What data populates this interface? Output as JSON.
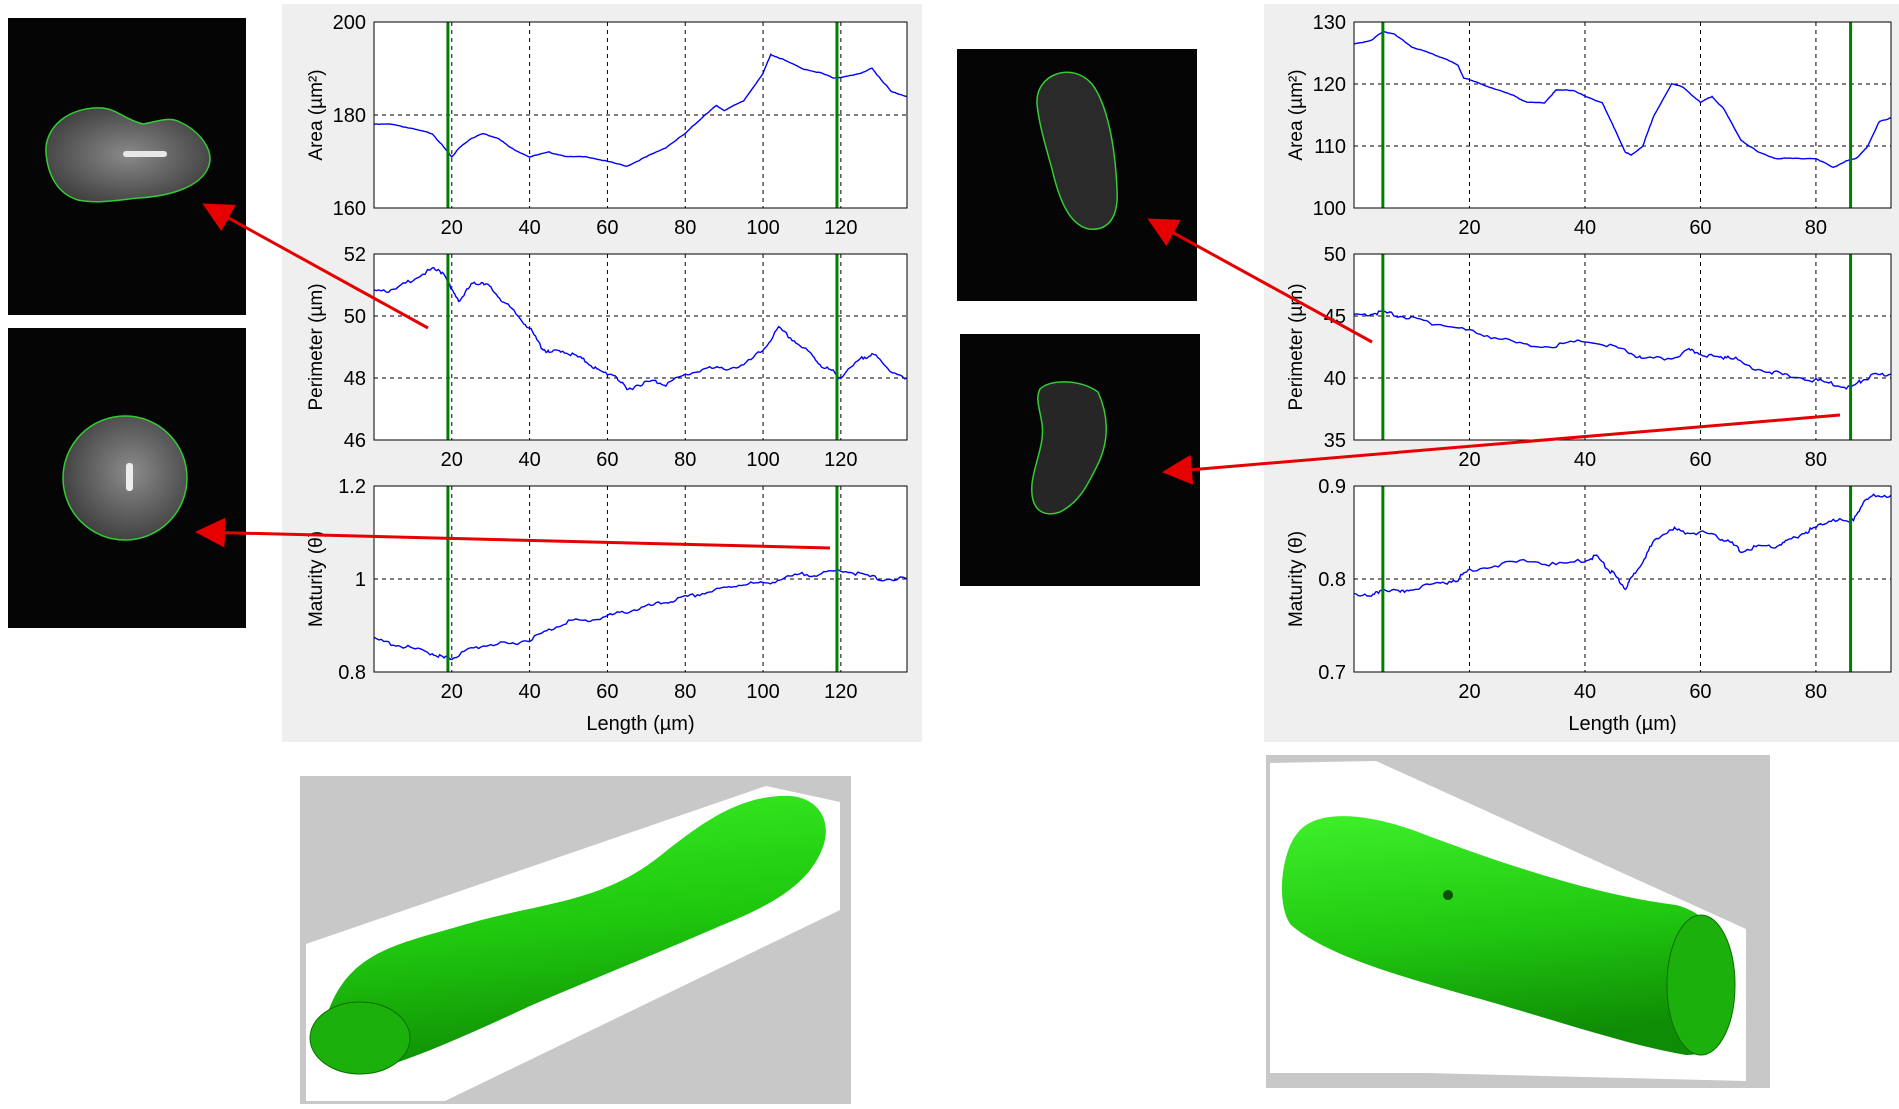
{
  "colors": {
    "trace": "#0000ff",
    "marker": "#008000",
    "arrow": "#e60000",
    "contour": "#33cc33",
    "tube": "#22dd11",
    "panel_bg": "#efefef",
    "render_bg": "#c8c8c8"
  },
  "chart_data": [
    {
      "type": "line",
      "panel": "left-area",
      "ylabel": "Area (µm²)",
      "xlabel": "",
      "xlim": [
        0,
        137
      ],
      "ylim": [
        160,
        200
      ],
      "xticks": [
        "20",
        "40",
        "60",
        "80",
        "100",
        "120"
      ],
      "yticks": [
        "160",
        "180",
        "200"
      ],
      "grid": true,
      "markers_x": [
        19,
        119
      ],
      "series": [
        {
          "x": [
            0,
            5,
            10,
            15,
            18,
            20,
            22,
            25,
            28,
            32,
            35,
            40,
            45,
            50,
            55,
            60,
            65,
            70,
            75,
            80,
            85,
            88,
            90,
            95,
            100,
            102,
            105,
            110,
            115,
            118,
            120,
            125,
            128,
            130,
            133,
            137
          ],
          "values": [
            178,
            178,
            177,
            176,
            173,
            171,
            173,
            175,
            176,
            175,
            173,
            171,
            172,
            171,
            171,
            170,
            169,
            171,
            173,
            176,
            180,
            182,
            181,
            183,
            189,
            193,
            192,
            190,
            189,
            188,
            188,
            189,
            190,
            188,
            185,
            184
          ]
        }
      ]
    },
    {
      "type": "line",
      "panel": "left-perimeter",
      "ylabel": "Perimeter (µm)",
      "xlabel": "",
      "xlim": [
        0,
        137
      ],
      "ylim": [
        46,
        52
      ],
      "xticks": [
        "20",
        "40",
        "60",
        "80",
        "100",
        "120"
      ],
      "yticks": [
        "46",
        "48",
        "50",
        "52"
      ],
      "grid": true,
      "markers_x": [
        19,
        119
      ],
      "series": [
        {
          "x": [
            0,
            5,
            10,
            15,
            18,
            20,
            22,
            25,
            28,
            30,
            33,
            37,
            40,
            43,
            45,
            48,
            52,
            55,
            58,
            62,
            65,
            68,
            72,
            75,
            80,
            85,
            90,
            95,
            100,
            104,
            108,
            112,
            115,
            118,
            120,
            125,
            128,
            132,
            137
          ],
          "values": [
            50.9,
            50.8,
            51.2,
            51.5,
            51.4,
            50.8,
            50.5,
            51.0,
            51.1,
            50.9,
            50.5,
            50.0,
            49.6,
            49.0,
            48.8,
            48.9,
            48.7,
            48.5,
            48.2,
            48.1,
            47.6,
            47.8,
            47.9,
            47.8,
            48.1,
            48.3,
            48.3,
            48.4,
            48.9,
            49.6,
            49.2,
            48.8,
            48.4,
            48.2,
            48.0,
            48.6,
            48.8,
            48.3,
            48.0
          ]
        }
      ]
    },
    {
      "type": "line",
      "panel": "left-maturity",
      "ylabel": "Maturity (θ)",
      "xlabel": "Length (µm)",
      "xlim": [
        0,
        137
      ],
      "ylim": [
        0.8,
        1.2
      ],
      "xticks": [
        "20",
        "40",
        "60",
        "80",
        "100",
        "120"
      ],
      "yticks": [
        "0.8",
        "1",
        "1.2"
      ],
      "grid": true,
      "markers_x": [
        19,
        119
      ],
      "series": [
        {
          "x": [
            0,
            5,
            10,
            15,
            18,
            20,
            25,
            30,
            35,
            40,
            45,
            50,
            55,
            60,
            65,
            70,
            75,
            80,
            85,
            90,
            95,
            100,
            105,
            110,
            115,
            120,
            125,
            130,
            137
          ],
          "values": [
            0.87,
            0.86,
            0.85,
            0.84,
            0.83,
            0.83,
            0.85,
            0.86,
            0.86,
            0.87,
            0.89,
            0.91,
            0.91,
            0.92,
            0.93,
            0.94,
            0.95,
            0.96,
            0.97,
            0.98,
            0.99,
            0.99,
            1.0,
            1.01,
            1.01,
            1.02,
            1.01,
            1.0,
            1.0
          ]
        }
      ]
    },
    {
      "type": "line",
      "panel": "right-area",
      "ylabel": "Area (µm²)",
      "xlabel": "",
      "xlim": [
        0,
        93
      ],
      "ylim": [
        100,
        130
      ],
      "xticks": [
        "20",
        "40",
        "60",
        "80"
      ],
      "yticks": [
        "100",
        "110",
        "120",
        "130"
      ],
      "grid": true,
      "markers_x": [
        5,
        86
      ],
      "series": [
        {
          "x": [
            0,
            3,
            5,
            7,
            10,
            13,
            16,
            18,
            19,
            22,
            25,
            28,
            30,
            33,
            35,
            38,
            40,
            43,
            45,
            47,
            48,
            50,
            52,
            55,
            57,
            60,
            62,
            64,
            67,
            70,
            73,
            76,
            80,
            83,
            85,
            87,
            89,
            91,
            93
          ],
          "values": [
            126.5,
            127,
            128.5,
            128,
            126,
            125,
            124,
            123,
            121,
            120,
            119,
            118,
            117,
            117,
            119,
            119,
            118,
            117,
            113,
            109,
            108.5,
            110,
            115,
            120,
            119.5,
            117,
            118,
            116,
            111,
            109,
            108,
            108,
            108,
            106.5,
            107.5,
            108,
            110,
            114,
            114.5
          ]
        }
      ]
    },
    {
      "type": "line",
      "panel": "right-perimeter",
      "ylabel": "Perimeter (µm)",
      "xlabel": "",
      "xlim": [
        0,
        93
      ],
      "ylim": [
        35,
        50
      ],
      "xticks": [
        "20",
        "40",
        "60",
        "80"
      ],
      "yticks": [
        "35",
        "40",
        "45",
        "50"
      ],
      "grid": true,
      "markers_x": [
        5,
        86
      ],
      "series": [
        {
          "x": [
            0,
            3,
            5,
            8,
            12,
            15,
            20,
            25,
            30,
            35,
            40,
            45,
            48,
            50,
            55,
            58,
            60,
            63,
            65,
            68,
            72,
            75,
            80,
            83,
            86,
            88,
            90,
            93
          ],
          "values": [
            45,
            45.2,
            45.3,
            45,
            44.6,
            44.3,
            43.8,
            43.2,
            42.6,
            42.6,
            43,
            42.5,
            42,
            41.5,
            41.6,
            42.2,
            42,
            41.6,
            41.8,
            41,
            40.5,
            40.2,
            39.8,
            39.5,
            39.2,
            39.8,
            40.2,
            40.3
          ]
        }
      ]
    },
    {
      "type": "line",
      "panel": "right-maturity",
      "ylabel": "Maturity (θ)",
      "xlabel": "Length (µm)",
      "xlim": [
        0,
        93
      ],
      "ylim": [
        0.7,
        0.9
      ],
      "xticks": [
        "20",
        "40",
        "60",
        "80"
      ],
      "yticks": [
        "0.7",
        "0.8",
        "0.9"
      ],
      "grid": true,
      "markers_x": [
        5,
        86
      ],
      "series": [
        {
          "x": [
            0,
            3,
            5,
            8,
            10,
            15,
            18,
            20,
            25,
            30,
            35,
            40,
            42,
            44,
            45,
            47,
            48,
            50,
            52,
            55,
            57,
            60,
            63,
            65,
            67,
            70,
            73,
            75,
            78,
            80,
            83,
            86,
            88,
            90,
            93
          ],
          "values": [
            0.785,
            0.78,
            0.79,
            0.785,
            0.79,
            0.795,
            0.8,
            0.81,
            0.815,
            0.82,
            0.815,
            0.82,
            0.825,
            0.81,
            0.805,
            0.79,
            0.8,
            0.82,
            0.84,
            0.855,
            0.85,
            0.85,
            0.845,
            0.84,
            0.83,
            0.835,
            0.835,
            0.84,
            0.85,
            0.855,
            0.865,
            0.86,
            0.88,
            0.89,
            0.89
          ]
        }
      ]
    }
  ]
}
